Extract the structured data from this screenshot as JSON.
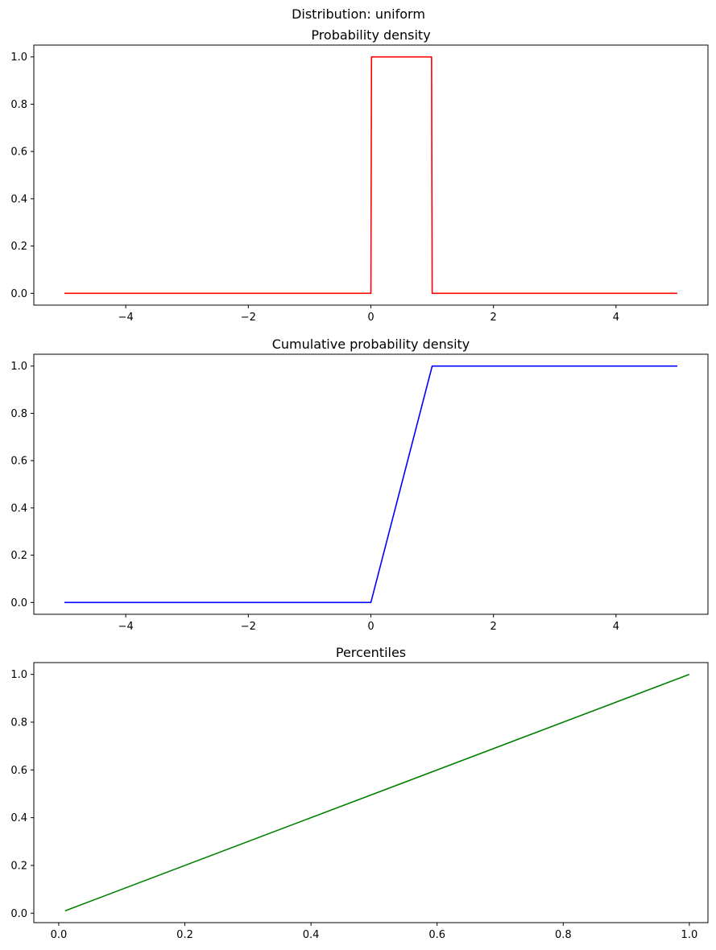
{
  "figure": {
    "suptitle": "Distribution: uniform"
  },
  "chart_data": [
    {
      "type": "line",
      "title": "Probability density",
      "xlabel": "",
      "ylabel": "",
      "color": "#ff0000",
      "xlim": [
        -5.5,
        5.5
      ],
      "ylim": [
        -0.05,
        1.05
      ],
      "xticks": [
        -4,
        -2,
        0,
        2,
        4
      ],
      "xtick_labels": [
        "−4",
        "−2",
        "0",
        "2",
        "4"
      ],
      "yticks": [
        0,
        0.2,
        0.4,
        0.6,
        0.8,
        1.0
      ],
      "ytick_labels": [
        "0.0",
        "0.2",
        "0.4",
        "0.6",
        "0.8",
        "1.0"
      ],
      "grid": false,
      "x": [
        -5,
        0,
        0.01,
        0.99,
        1,
        5
      ],
      "y": [
        0,
        0,
        1,
        1,
        0,
        0
      ]
    },
    {
      "type": "line",
      "title": "Cumulative probability density",
      "xlabel": "",
      "ylabel": "",
      "color": "#0000ff",
      "xlim": [
        -5.5,
        5.5
      ],
      "ylim": [
        -0.05,
        1.05
      ],
      "xticks": [
        -4,
        -2,
        0,
        2,
        4
      ],
      "xtick_labels": [
        "−4",
        "−2",
        "0",
        "2",
        "4"
      ],
      "yticks": [
        0,
        0.2,
        0.4,
        0.6,
        0.8,
        1.0
      ],
      "ytick_labels": [
        "0.0",
        "0.2",
        "0.4",
        "0.6",
        "0.8",
        "1.0"
      ],
      "grid": false,
      "x": [
        -5,
        0,
        1,
        5
      ],
      "y": [
        0,
        0,
        1,
        1
      ]
    },
    {
      "type": "line",
      "title": "Percentiles",
      "xlabel": "",
      "ylabel": "",
      "color": "#008000",
      "xlim": [
        -0.0395,
        1.0295
      ],
      "ylim": [
        -0.0395,
        1.0495
      ],
      "xticks": [
        0,
        0.2,
        0.4,
        0.6,
        0.8,
        1.0
      ],
      "xtick_labels": [
        "0.0",
        "0.2",
        "0.4",
        "0.6",
        "0.8",
        "1.0"
      ],
      "yticks": [
        0,
        0.2,
        0.4,
        0.6,
        0.8,
        1.0
      ],
      "ytick_labels": [
        "0.0",
        "0.2",
        "0.4",
        "0.6",
        "0.8",
        "1.0"
      ],
      "grid": false,
      "x": [
        0.01,
        1.0
      ],
      "y": [
        0.01,
        1.0
      ]
    }
  ]
}
